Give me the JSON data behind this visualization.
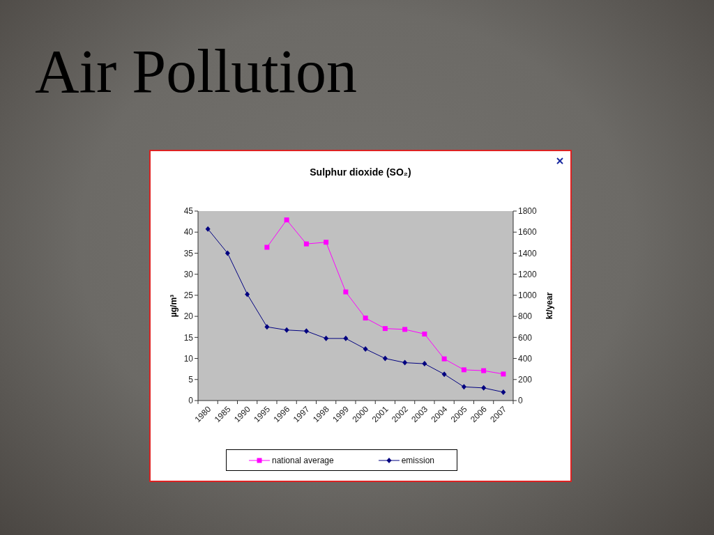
{
  "chart_data": {
    "type": "line",
    "title": "Air Pollution",
    "subtitle": "Sulphur dioxide (SO₂)",
    "ylabel": "µg/m³",
    "y2label": "kt/year",
    "categories": [
      "1980",
      "1985",
      "1990",
      "1995",
      "1996",
      "1997",
      "1998",
      "1999",
      "2000",
      "2001",
      "2002",
      "2003",
      "2004",
      "2005",
      "2006",
      "2007"
    ],
    "series": [
      {
        "name": "national average",
        "color": "#ff00ff",
        "marker": "square",
        "values": [
          null,
          null,
          null,
          36.4,
          42.9,
          37.2,
          37.6,
          25.8,
          19.6,
          17.1,
          16.9,
          15.8,
          9.9,
          7.3,
          7.1,
          6.3
        ]
      },
      {
        "name": "emission",
        "color": "#000080",
        "marker": "diamond",
        "axis": "y2",
        "values": [
          1630,
          1400,
          1010,
          700,
          670,
          660,
          590,
          590,
          490,
          400,
          360,
          350,
          250,
          130,
          120,
          80
        ]
      }
    ],
    "ylim": [
      0,
      45
    ],
    "yticks": [
      0,
      5,
      10,
      15,
      20,
      25,
      30,
      35,
      40,
      45
    ],
    "y2lim": [
      0,
      1800
    ],
    "y2ticks": [
      0,
      200,
      400,
      600,
      800,
      1000,
      1200,
      1400,
      1600,
      1800
    ],
    "legend": "bottom"
  }
}
